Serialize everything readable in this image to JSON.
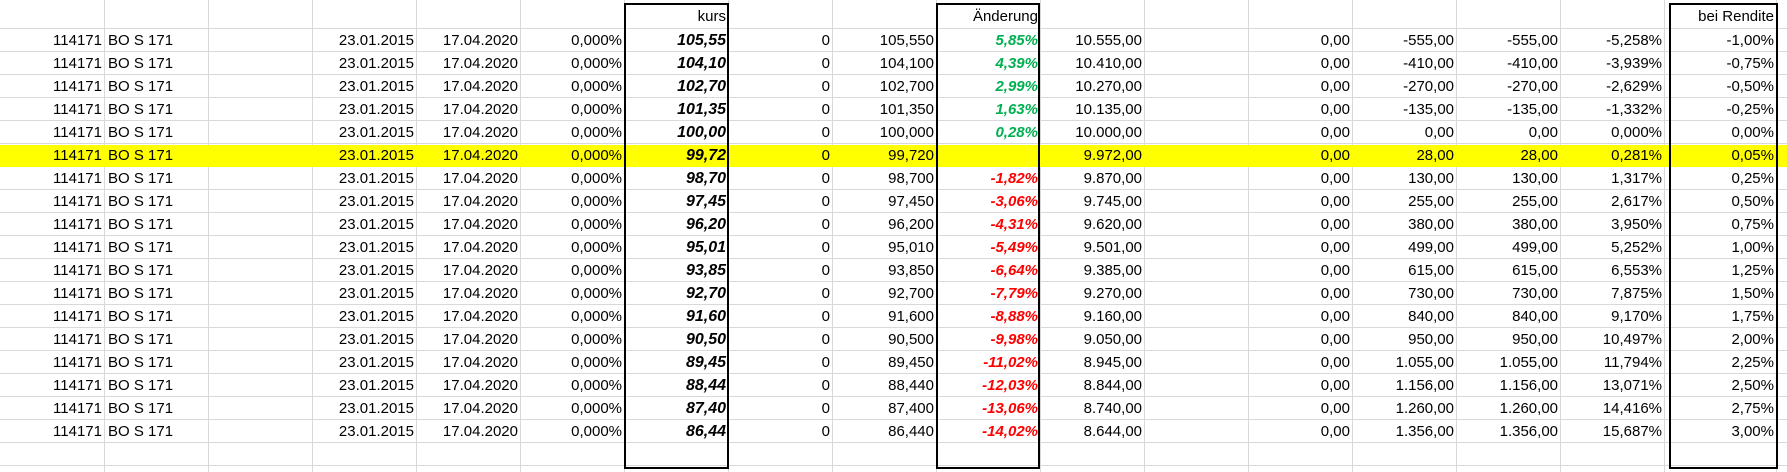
{
  "headers": {
    "kurs": "kurs",
    "aenderung": "Änderung",
    "bei_rendite": "bei Rendite"
  },
  "colors": {
    "highlight": "#ffff00",
    "positive": "#00b050",
    "negative": "#ff0000",
    "gridline": "#d9d9d9"
  },
  "highlighted_row_index": 5,
  "rows": [
    {
      "nr": "114171",
      "name": "BO S 171",
      "date1": "23.01.2015",
      "date2": "17.04.2020",
      "pct": "0,000%",
      "kurs": "105,55",
      "zero": "0",
      "price": "105,550",
      "change": "5,85%",
      "change_sign": "pos",
      "amount": "10.555,00",
      "a": "0,00",
      "b": "-555,00",
      "c": "-555,00",
      "d": "-5,258%",
      "rendite": "-1,00%"
    },
    {
      "nr": "114171",
      "name": "BO S 171",
      "date1": "23.01.2015",
      "date2": "17.04.2020",
      "pct": "0,000%",
      "kurs": "104,10",
      "zero": "0",
      "price": "104,100",
      "change": "4,39%",
      "change_sign": "pos",
      "amount": "10.410,00",
      "a": "0,00",
      "b": "-410,00",
      "c": "-410,00",
      "d": "-3,939%",
      "rendite": "-0,75%"
    },
    {
      "nr": "114171",
      "name": "BO S 171",
      "date1": "23.01.2015",
      "date2": "17.04.2020",
      "pct": "0,000%",
      "kurs": "102,70",
      "zero": "0",
      "price": "102,700",
      "change": "2,99%",
      "change_sign": "pos",
      "amount": "10.270,00",
      "a": "0,00",
      "b": "-270,00",
      "c": "-270,00",
      "d": "-2,629%",
      "rendite": "-0,50%"
    },
    {
      "nr": "114171",
      "name": "BO S 171",
      "date1": "23.01.2015",
      "date2": "17.04.2020",
      "pct": "0,000%",
      "kurs": "101,35",
      "zero": "0",
      "price": "101,350",
      "change": "1,63%",
      "change_sign": "pos",
      "amount": "10.135,00",
      "a": "0,00",
      "b": "-135,00",
      "c": "-135,00",
      "d": "-1,332%",
      "rendite": "-0,25%"
    },
    {
      "nr": "114171",
      "name": "BO S 171",
      "date1": "23.01.2015",
      "date2": "17.04.2020",
      "pct": "0,000%",
      "kurs": "100,00",
      "zero": "0",
      "price": "100,000",
      "change": "0,28%",
      "change_sign": "pos",
      "amount": "10.000,00",
      "a": "0,00",
      "b": "0,00",
      "c": "0,00",
      "d": "0,000%",
      "rendite": "0,00%"
    },
    {
      "nr": "114171",
      "name": "BO S 171",
      "date1": "23.01.2015",
      "date2": "17.04.2020",
      "pct": "0,000%",
      "kurs": "99,72",
      "zero": "0",
      "price": "99,720",
      "change": "",
      "change_sign": "none",
      "amount": "9.972,00",
      "a": "0,00",
      "b": "28,00",
      "c": "28,00",
      "d": "0,281%",
      "rendite": "0,05%"
    },
    {
      "nr": "114171",
      "name": "BO S 171",
      "date1": "23.01.2015",
      "date2": "17.04.2020",
      "pct": "0,000%",
      "kurs": "98,70",
      "zero": "0",
      "price": "98,700",
      "change": "-1,82%",
      "change_sign": "neg",
      "amount": "9.870,00",
      "a": "0,00",
      "b": "130,00",
      "c": "130,00",
      "d": "1,317%",
      "rendite": "0,25%"
    },
    {
      "nr": "114171",
      "name": "BO S 171",
      "date1": "23.01.2015",
      "date2": "17.04.2020",
      "pct": "0,000%",
      "kurs": "97,45",
      "zero": "0",
      "price": "97,450",
      "change": "-3,06%",
      "change_sign": "neg",
      "amount": "9.745,00",
      "a": "0,00",
      "b": "255,00",
      "c": "255,00",
      "d": "2,617%",
      "rendite": "0,50%"
    },
    {
      "nr": "114171",
      "name": "BO S 171",
      "date1": "23.01.2015",
      "date2": "17.04.2020",
      "pct": "0,000%",
      "kurs": "96,20",
      "zero": "0",
      "price": "96,200",
      "change": "-4,31%",
      "change_sign": "neg",
      "amount": "9.620,00",
      "a": "0,00",
      "b": "380,00",
      "c": "380,00",
      "d": "3,950%",
      "rendite": "0,75%"
    },
    {
      "nr": "114171",
      "name": "BO S 171",
      "date1": "23.01.2015",
      "date2": "17.04.2020",
      "pct": "0,000%",
      "kurs": "95,01",
      "zero": "0",
      "price": "95,010",
      "change": "-5,49%",
      "change_sign": "neg",
      "amount": "9.501,00",
      "a": "0,00",
      "b": "499,00",
      "c": "499,00",
      "d": "5,252%",
      "rendite": "1,00%"
    },
    {
      "nr": "114171",
      "name": "BO S 171",
      "date1": "23.01.2015",
      "date2": "17.04.2020",
      "pct": "0,000%",
      "kurs": "93,85",
      "zero": "0",
      "price": "93,850",
      "change": "-6,64%",
      "change_sign": "neg",
      "amount": "9.385,00",
      "a": "0,00",
      "b": "615,00",
      "c": "615,00",
      "d": "6,553%",
      "rendite": "1,25%"
    },
    {
      "nr": "114171",
      "name": "BO S 171",
      "date1": "23.01.2015",
      "date2": "17.04.2020",
      "pct": "0,000%",
      "kurs": "92,70",
      "zero": "0",
      "price": "92,700",
      "change": "-7,79%",
      "change_sign": "neg",
      "amount": "9.270,00",
      "a": "0,00",
      "b": "730,00",
      "c": "730,00",
      "d": "7,875%",
      "rendite": "1,50%"
    },
    {
      "nr": "114171",
      "name": "BO S 171",
      "date1": "23.01.2015",
      "date2": "17.04.2020",
      "pct": "0,000%",
      "kurs": "91,60",
      "zero": "0",
      "price": "91,600",
      "change": "-8,88%",
      "change_sign": "neg",
      "amount": "9.160,00",
      "a": "0,00",
      "b": "840,00",
      "c": "840,00",
      "d": "9,170%",
      "rendite": "1,75%"
    },
    {
      "nr": "114171",
      "name": "BO S 171",
      "date1": "23.01.2015",
      "date2": "17.04.2020",
      "pct": "0,000%",
      "kurs": "90,50",
      "zero": "0",
      "price": "90,500",
      "change": "-9,98%",
      "change_sign": "neg",
      "amount": "9.050,00",
      "a": "0,00",
      "b": "950,00",
      "c": "950,00",
      "d": "10,497%",
      "rendite": "2,00%"
    },
    {
      "nr": "114171",
      "name": "BO S 171",
      "date1": "23.01.2015",
      "date2": "17.04.2020",
      "pct": "0,000%",
      "kurs": "89,45",
      "zero": "0",
      "price": "89,450",
      "change": "-11,02%",
      "change_sign": "neg",
      "amount": "8.945,00",
      "a": "0,00",
      "b": "1.055,00",
      "c": "1.055,00",
      "d": "11,794%",
      "rendite": "2,25%"
    },
    {
      "nr": "114171",
      "name": "BO S 171",
      "date1": "23.01.2015",
      "date2": "17.04.2020",
      "pct": "0,000%",
      "kurs": "88,44",
      "zero": "0",
      "price": "88,440",
      "change": "-12,03%",
      "change_sign": "neg",
      "amount": "8.844,00",
      "a": "0,00",
      "b": "1.156,00",
      "c": "1.156,00",
      "d": "13,071%",
      "rendite": "2,50%"
    },
    {
      "nr": "114171",
      "name": "BO S 171",
      "date1": "23.01.2015",
      "date2": "17.04.2020",
      "pct": "0,000%",
      "kurs": "87,40",
      "zero": "0",
      "price": "87,400",
      "change": "-13,06%",
      "change_sign": "neg",
      "amount": "8.740,00",
      "a": "0,00",
      "b": "1.260,00",
      "c": "1.260,00",
      "d": "14,416%",
      "rendite": "2,75%"
    },
    {
      "nr": "114171",
      "name": "BO S 171",
      "date1": "23.01.2015",
      "date2": "17.04.2020",
      "pct": "0,000%",
      "kurs": "86,44",
      "zero": "0",
      "price": "86,440",
      "change": "-14,02%",
      "change_sign": "neg",
      "amount": "8.644,00",
      "a": "0,00",
      "b": "1.356,00",
      "c": "1.356,00",
      "d": "15,687%",
      "rendite": "3,00%"
    }
  ]
}
